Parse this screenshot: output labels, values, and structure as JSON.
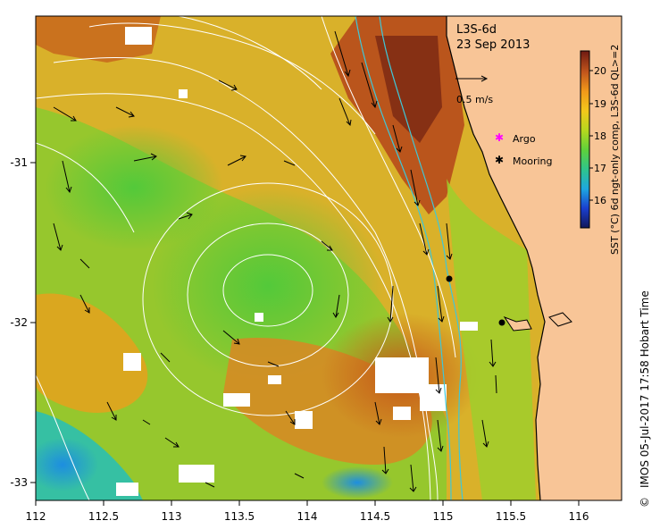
{
  "map": {
    "product_label": "L3S-6d",
    "date_label": "23 Sep 2013",
    "scale_label": "0.5 m/s",
    "x_ticks": [
      "112",
      "112.5",
      "113",
      "113.5",
      "114",
      "114.5",
      "115",
      "115.5",
      "116"
    ],
    "y_ticks": [
      "-31",
      "-32",
      "-33"
    ]
  },
  "legend": {
    "argo_label": "Argo",
    "mooring_label": "Mooring",
    "argo_color": "#ff00ff",
    "mooring_color": "#000000"
  },
  "colorbar": {
    "title": "SST (°C) 6d ngt-only comp, L3S-6d QL>=2",
    "ticks": [
      "20",
      "19",
      "18",
      "17",
      "16"
    ],
    "min": 15.5,
    "max": 20.5,
    "colors": [
      "#13175a",
      "#1a3fcf",
      "#1ea7e0",
      "#2fc48c",
      "#5ed13b",
      "#b6d81e",
      "#f3c81b",
      "#f29a1a",
      "#c2561c",
      "#6f1a12"
    ]
  },
  "footer": {
    "credit": "IMOS 05-Jul-2017 17:58 Hobart Time",
    "copyright_symbol": "©"
  },
  "colors": {
    "land": "#f8c597",
    "sst_low": "#1c78d8",
    "sst_mid": "#7bd033",
    "sst_high": "#d8841f"
  }
}
